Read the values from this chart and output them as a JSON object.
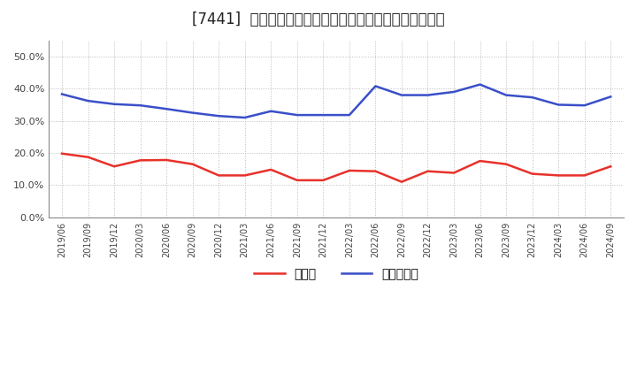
{
  "title": "[7441]  現預金、有利子負債の総資産に対する比率の推移",
  "x_labels": [
    "2019/06",
    "2019/09",
    "2019/12",
    "2020/03",
    "2020/06",
    "2020/09",
    "2020/12",
    "2021/03",
    "2021/06",
    "2021/09",
    "2021/12",
    "2022/03",
    "2022/06",
    "2022/09",
    "2022/12",
    "2023/03",
    "2023/06",
    "2023/09",
    "2023/12",
    "2024/03",
    "2024/06",
    "2024/09"
  ],
  "cash": [
    0.198,
    0.187,
    0.158,
    0.177,
    0.178,
    0.165,
    0.13,
    0.13,
    0.148,
    0.115,
    0.115,
    0.145,
    0.143,
    0.11,
    0.143,
    0.138,
    0.175,
    0.165,
    0.135,
    0.13,
    0.13,
    0.158
  ],
  "debt": [
    0.383,
    0.362,
    0.352,
    0.348,
    0.337,
    0.325,
    0.315,
    0.31,
    0.33,
    0.318,
    0.318,
    0.318,
    0.408,
    0.38,
    0.38,
    0.39,
    0.413,
    0.38,
    0.373,
    0.35,
    0.348,
    0.375
  ],
  "cash_color": "#e8312a",
  "debt_color": "#3a4fc8",
  "ylim": [
    0.0,
    0.55
  ],
  "yticks": [
    0.0,
    0.1,
    0.2,
    0.3,
    0.4,
    0.5
  ],
  "legend_cash": "現預金",
  "legend_debt": "有利子負債",
  "bg_color": "#ffffff",
  "plot_bg_color": "#ffffff",
  "grid_color": "#bbbbbb",
  "title_fontsize": 12,
  "line_width": 1.8
}
